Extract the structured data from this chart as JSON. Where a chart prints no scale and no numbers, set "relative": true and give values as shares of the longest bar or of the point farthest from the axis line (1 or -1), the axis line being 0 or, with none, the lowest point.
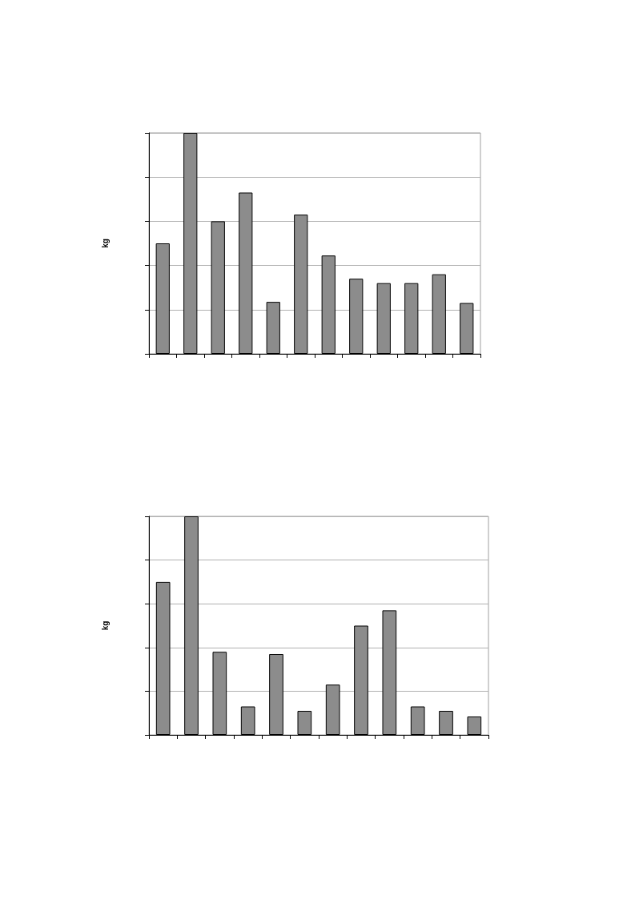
{
  "chart_data": [
    {
      "type": "bar",
      "ylabel": "kg",
      "categories": [
        null,
        null,
        null,
        null,
        null,
        null,
        null,
        null,
        null,
        null,
        null,
        null
      ],
      "values": [
        0.5,
        1,
        0.6,
        0.73,
        0.235,
        0.63,
        0.445,
        0.34,
        0.32,
        0.32,
        0.36,
        0.23
      ],
      "color": "#8c8c8c",
      "relative": true,
      "grid": "y"
    },
    {
      "type": "bar",
      "ylabel": "kg",
      "categories": [
        null,
        null,
        null,
        null,
        null,
        null,
        null,
        null,
        null,
        null,
        null,
        null
      ],
      "values": [
        0.7,
        1,
        0.38,
        0.13,
        0.37,
        0.11,
        0.23,
        0.5,
        0.57,
        0.13,
        0.11,
        0.084
      ],
      "color": "#8c8c8c",
      "relative": true,
      "grid": "y"
    }
  ]
}
